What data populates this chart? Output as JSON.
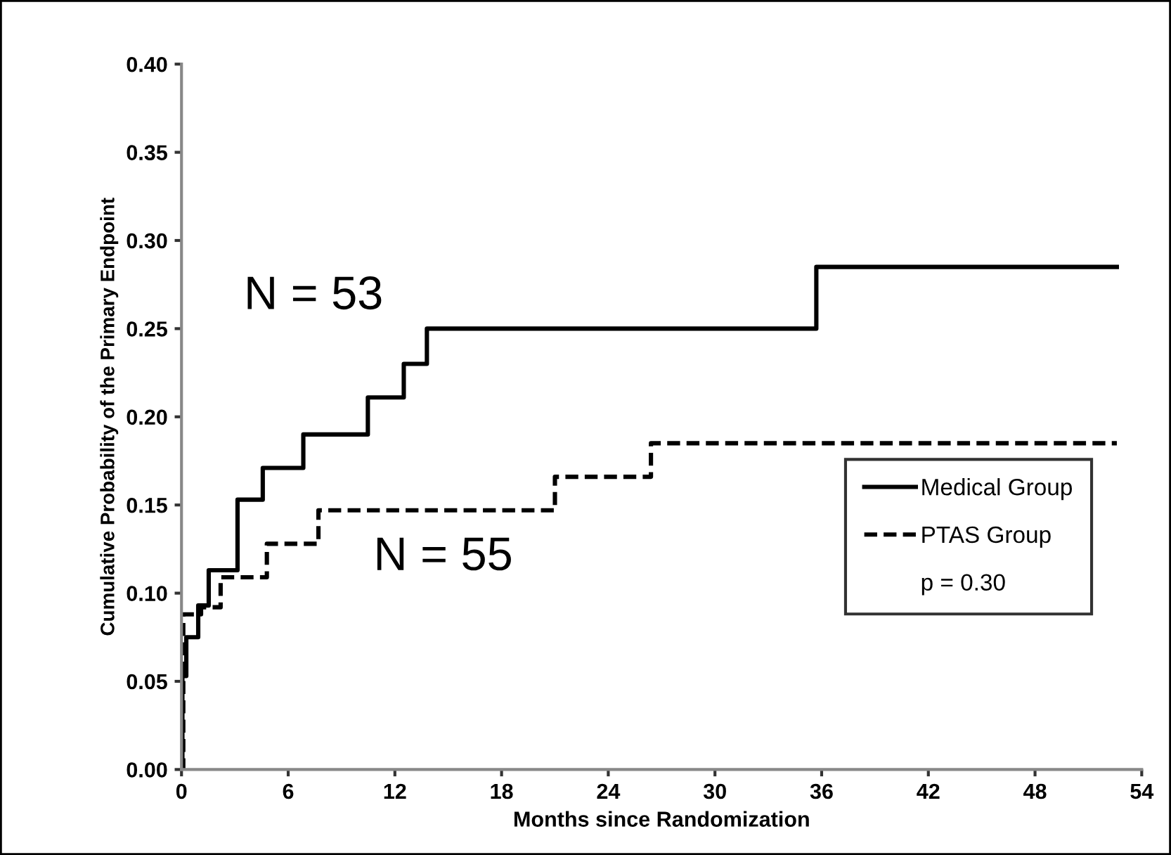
{
  "chart_data": {
    "type": "step",
    "xlabel": "Months since Randomization",
    "ylabel": "Cumulative Probability of the Primary Endpoint",
    "series": [
      {
        "name": "Medical Group",
        "color": "#000000",
        "line_style": "solid",
        "x": [
          0,
          0.05,
          0.27,
          0.94,
          1.53,
          3.15,
          4.57,
          6.85,
          10.48,
          12.5,
          13.8,
          35.7,
          52.6
        ],
        "values": [
          0,
          0.053,
          0.075,
          0.093,
          0.113,
          0.153,
          0.171,
          0.19,
          0.211,
          0.23,
          0.25,
          0.285,
          0.285
        ]
      },
      {
        "name": "PTAS Group",
        "color": "#000000",
        "line_style": "dashed",
        "x": [
          0,
          0.1,
          1.1,
          2.2,
          4.8,
          7.7,
          21.0,
          26.4,
          52.6
        ],
        "values": [
          0,
          0.088,
          0.092,
          0.109,
          0.128,
          0.147,
          0.166,
          0.185,
          0.185
        ]
      }
    ],
    "annotations": [
      "N = 53",
      "N = 55",
      "p = 0.30"
    ],
    "xlim": [
      0,
      54
    ],
    "xticks": [
      0,
      6,
      12,
      18,
      24,
      30,
      36,
      42,
      48,
      54
    ],
    "ylim": [
      0,
      0.4
    ],
    "yticks": [
      {
        "value": 0,
        "label": "0.00"
      },
      {
        "value": 0.05,
        "label": "0.05"
      },
      {
        "value": 0.1,
        "label": "0.10"
      },
      {
        "value": 0.15,
        "label": "0.15"
      },
      {
        "value": 0.2,
        "label": "0.20"
      },
      {
        "value": 0.25,
        "label": "0.25"
      },
      {
        "value": 0.3,
        "label": "0.30"
      },
      {
        "value": 0.35,
        "label": "0.35"
      },
      {
        "value": 0.4,
        "label": "0.40"
      }
    ],
    "grid": false,
    "legend": "right",
    "marker": "none"
  }
}
